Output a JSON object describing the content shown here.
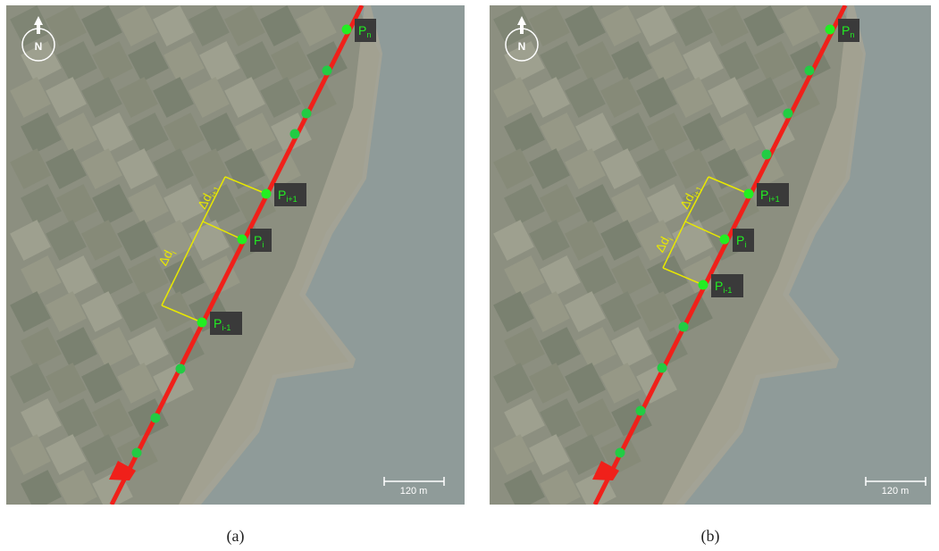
{
  "panels": [
    {
      "caption": "(a)",
      "compass": "N",
      "scale": "120 m",
      "labels": [
        {
          "p": "P",
          "sub": "n"
        },
        {
          "p": "P",
          "sub": "i+1"
        },
        {
          "p": "P",
          "sub": "i"
        },
        {
          "p": "P",
          "sub": "i-1"
        }
      ],
      "deltas": [
        {
          "d": "Δd",
          "sub": "i+1"
        },
        {
          "d": "Δd",
          "sub": "i"
        }
      ]
    },
    {
      "caption": "(b)",
      "compass": "N",
      "scale": "120 m",
      "labels": [
        {
          "p": "P",
          "sub": "n"
        },
        {
          "p": "P",
          "sub": "i+1"
        },
        {
          "p": "P",
          "sub": "i"
        },
        {
          "p": "P",
          "sub": "i-1"
        }
      ],
      "deltas": [
        {
          "d": "Δd",
          "sub": "i+1"
        },
        {
          "d": "Δd",
          "sub": "i"
        }
      ]
    }
  ]
}
